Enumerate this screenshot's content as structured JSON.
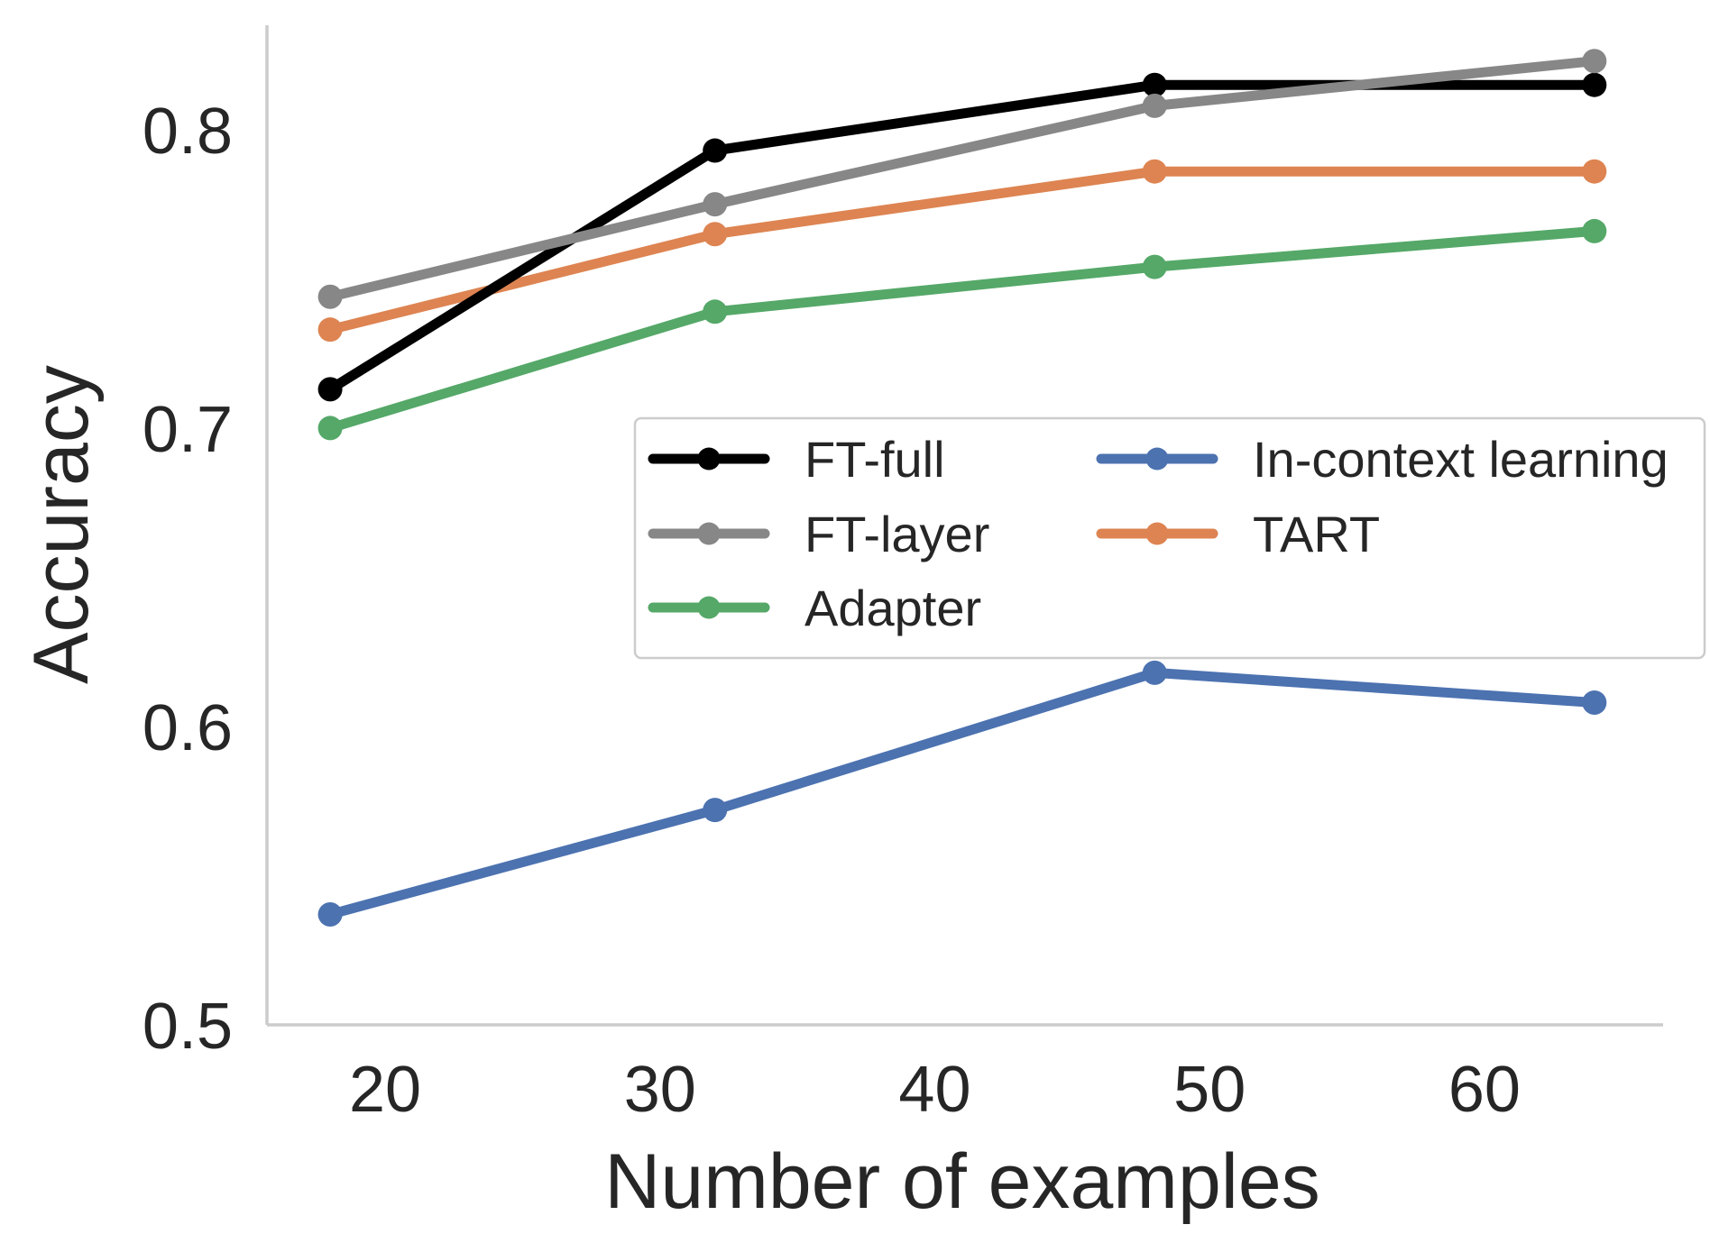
{
  "chart_data": {
    "type": "line",
    "title": "",
    "xlabel": "Number of examples",
    "ylabel": "Accuracy",
    "xlim": [
      15.7,
      66.5
    ],
    "ylim": [
      0.5,
      0.835
    ],
    "xticks": [
      20,
      30,
      40,
      50,
      60
    ],
    "xtick_labels": [
      "20",
      "30",
      "40",
      "50",
      "60"
    ],
    "yticks": [
      0.5,
      0.6,
      0.7,
      0.8
    ],
    "ytick_labels": [
      "0.5",
      "0.6",
      "0.7",
      "0.8"
    ],
    "grid": false,
    "legend_position": "center-right",
    "x": [
      18,
      32,
      48,
      64
    ],
    "series": [
      {
        "name": "FT-full",
        "color": "#000000",
        "values": [
          0.713,
          0.793,
          0.815,
          0.815
        ]
      },
      {
        "name": "FT-layer",
        "color": "#878787",
        "values": [
          0.744,
          0.775,
          0.808,
          0.823
        ]
      },
      {
        "name": "Adapter",
        "color": "#55a868",
        "values": [
          0.7,
          0.739,
          0.754,
          0.766
        ]
      },
      {
        "name": "In-context learning",
        "color": "#4c72b0",
        "values": [
          0.537,
          0.572,
          0.618,
          0.608
        ]
      },
      {
        "name": "TART",
        "color": "#dd8452",
        "values": [
          0.733,
          0.765,
          0.786,
          0.786
        ]
      }
    ],
    "legend_order": [
      "FT-full",
      "FT-layer",
      "Adapter",
      "In-context learning",
      "TART"
    ]
  }
}
